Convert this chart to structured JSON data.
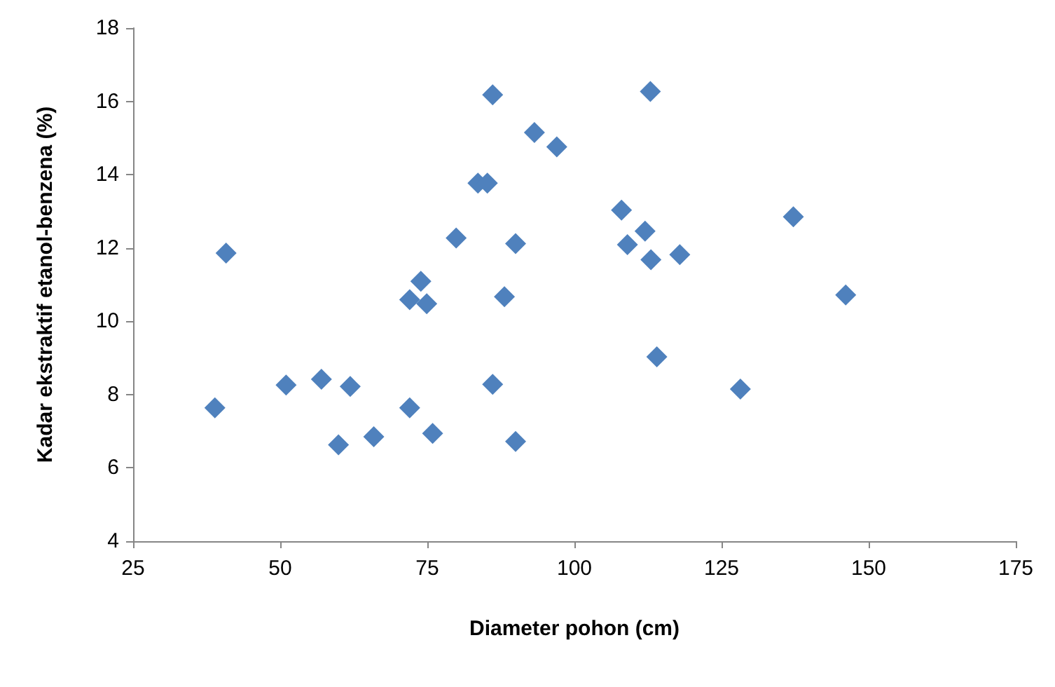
{
  "chart_data": {
    "type": "scatter",
    "xlabel": "Diameter pohon (cm)",
    "ylabel": "Kadar ekstraktif etanol-benzena (%)",
    "xlim": [
      25,
      175
    ],
    "xticks": [
      25,
      50,
      75,
      100,
      125,
      150,
      175
    ],
    "ylim": [
      4,
      18
    ],
    "yticks": [
      4,
      6,
      8,
      10,
      12,
      14,
      16,
      18
    ],
    "grid": false,
    "marker": "diamond",
    "series": [
      {
        "color": "#4f81bd",
        "x": [
          38.9,
          40.8,
          51.0,
          57.0,
          61.9,
          59.9,
          65.9,
          72.0,
          75.9,
          72.0,
          73.9,
          74.9,
          79.9,
          83.6,
          85.2,
          86.1,
          93.2,
          97.0,
          90.0,
          88.1,
          86.1,
          90.0,
          108.0,
          112.0,
          109.0,
          113.0,
          112.9,
          117.9,
          114.0,
          137.2,
          146.1,
          128.2
        ],
        "values": [
          7.64,
          11.86,
          8.26,
          8.42,
          8.22,
          6.63,
          6.85,
          7.64,
          6.94,
          10.59,
          11.09,
          10.48,
          12.27,
          13.77,
          13.77,
          16.18,
          15.15,
          14.76,
          12.12,
          10.67,
          8.28,
          6.72,
          13.03,
          12.46,
          12.09,
          11.68,
          16.27,
          11.82,
          9.03,
          12.85,
          10.72,
          8.15
        ]
      }
    ]
  }
}
